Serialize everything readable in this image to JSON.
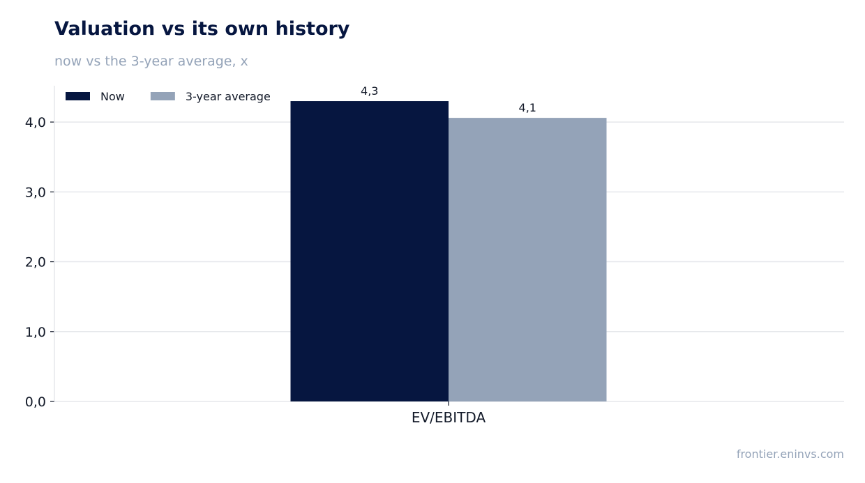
{
  "header": {
    "title": "Valuation vs its own history",
    "subtitle": "now vs the 3-year average, x"
  },
  "footer": {
    "source": "frontier.eninvs.com"
  },
  "chart_data": {
    "type": "bar",
    "categories": [
      "EV/EBITDA"
    ],
    "series": [
      {
        "name": "Now",
        "values": [
          4.3
        ],
        "color": "#061640",
        "label": "4,3"
      },
      {
        "name": "3-year average",
        "values": [
          4.06
        ],
        "color": "#94a3b8",
        "label": "4,1"
      }
    ],
    "ylim": [
      0,
      4.5
    ],
    "yticks": [
      0,
      1,
      2,
      3,
      4
    ],
    "ytick_labels": [
      "0,0",
      "1,0",
      "2,0",
      "3,0",
      "4,0"
    ],
    "grid": true,
    "legend": "top-left"
  }
}
